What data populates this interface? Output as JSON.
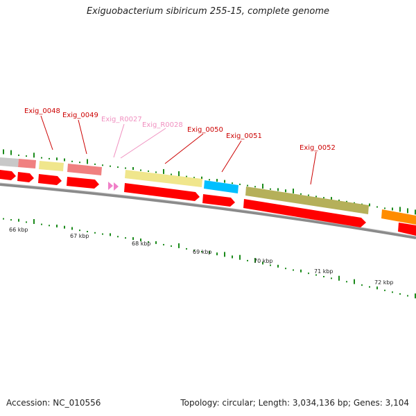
{
  "title": "Exiguobacterium sibiricum 255-15, complete genome",
  "footer": {
    "accession": "Accession: NC_010556",
    "topology": "Topology: circular; Length: 3,034,136 bp; Genes: 3,104"
  },
  "colors": {
    "backbone": "#8a8a8a",
    "forward_arrow": "#ff0000",
    "cds_label": "#cc0000",
    "rna_label": "#f090c0",
    "rna_arrow": "#f080c8",
    "gc_ticks": "#1a8a1a",
    "feature_grey": "#c8c8c8",
    "feature_pink": "#f08080",
    "feature_yellow": "#f0e68c",
    "feature_blue": "#00bfff",
    "feature_olive": "#b5b05a",
    "feature_orange": "#ff8c00"
  },
  "genes": [
    {
      "label": "Exig_0048",
      "kind": "cds"
    },
    {
      "label": "Exig_0049",
      "kind": "cds"
    },
    {
      "label": "Exig_R0027",
      "kind": "rna"
    },
    {
      "label": "Exig_R0028",
      "kind": "rna"
    },
    {
      "label": "Exig_0050",
      "kind": "cds"
    },
    {
      "label": "Exig_0051",
      "kind": "cds"
    },
    {
      "label": "Exig_0052",
      "kind": "cds"
    }
  ],
  "scale": [
    "66 kbp",
    "67 kbp",
    "68 kbp",
    "69 kbp",
    "70 kbp",
    "71 kbp",
    "72 kbp"
  ]
}
